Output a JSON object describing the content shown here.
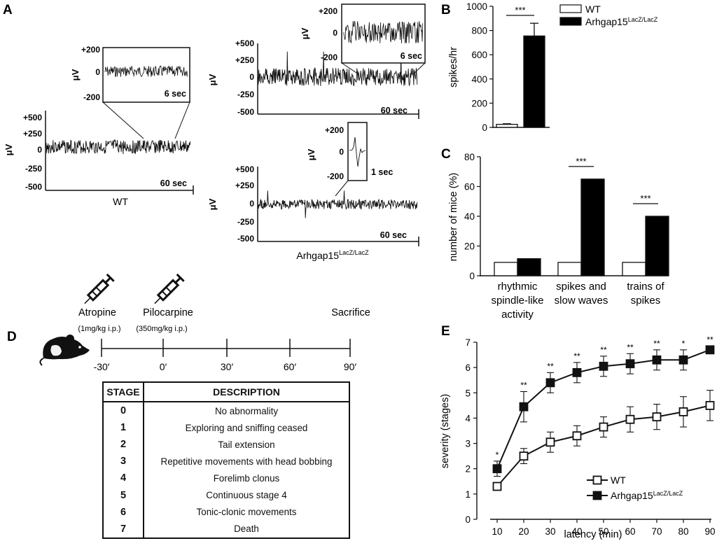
{
  "figure": {
    "panel_labels": [
      "A",
      "B",
      "C",
      "D",
      "E"
    ],
    "scale_unit": "μV",
    "bottom_trace_ticks": [
      "+500",
      "+250",
      "0",
      "-250",
      "-500"
    ],
    "inset_ticks": [
      "+200",
      "0",
      "-200"
    ]
  },
  "panel_a": {
    "wt": {
      "group_label": "WT",
      "time_label": "60 sec",
      "inset_time": "6 sec"
    },
    "ko_top": {
      "time_label": "60 sec",
      "inset_time": "6 sec"
    },
    "ko_bottom": {
      "time_label": "60 sec",
      "inset_time": "1 sec"
    },
    "ko_group_label": "Arhgap15",
    "ko_group_sup": "LacZ/LacZ"
  },
  "panel_d": {
    "timeline": {
      "ticks": [
        "-30′",
        "0′",
        "30′",
        "60′",
        "90′"
      ],
      "events": [
        {
          "name": "Atropine",
          "dose": "(1mg/kg i.p.)"
        },
        {
          "name": "Pilocarpine",
          "dose": "(350mg/kg i.p.)"
        },
        {
          "name": "Sacrifice",
          "dose": ""
        }
      ]
    },
    "table": {
      "headers": [
        "STAGE",
        "DESCRIPTION"
      ],
      "rows": [
        {
          "stage": "0",
          "description": "No abnormality"
        },
        {
          "stage": "1",
          "description": "Exploring and sniffing ceased"
        },
        {
          "stage": "2",
          "description": "Tail extension"
        },
        {
          "stage": "3",
          "description": "Repetitive movements with head bobbing"
        },
        {
          "stage": "4",
          "description": "Forelimb clonus"
        },
        {
          "stage": "5",
          "description": "Continuous stage 4"
        },
        {
          "stage": "6",
          "description": "Tonic-clonic movements"
        },
        {
          "stage": "7",
          "description": "Death"
        }
      ]
    }
  },
  "colors": {
    "wt": "#ffffff",
    "ko": "#000000",
    "stroke": "#111111"
  },
  "chart_data": [
    {
      "id": "B",
      "type": "bar",
      "categories": [
        "WT",
        "Arhgap15 LacZ/LacZ"
      ],
      "values": [
        25,
        755
      ],
      "errors": [
        5,
        105
      ],
      "ylabel": "spikes/hr",
      "ylim": [
        0,
        1000
      ],
      "yticks": [
        0,
        200,
        400,
        600,
        800,
        1000
      ],
      "significance": "***",
      "legend": [
        {
          "label": "WT",
          "sup": "",
          "color": "#ffffff"
        },
        {
          "label": "Arhgap15",
          "sup": "LacZ/LacZ",
          "color": "#000000"
        }
      ],
      "legend_position": "top-right"
    },
    {
      "id": "C",
      "type": "bar",
      "categories": [
        [
          "rhythmic",
          "spindle-like",
          "activity"
        ],
        [
          "spikes and",
          "slow waves"
        ],
        [
          "trains of",
          "spikes"
        ]
      ],
      "series": [
        {
          "name": "WT",
          "color": "#ffffff",
          "values": [
            9,
            9,
            9
          ]
        },
        {
          "name": "Arhgap15 LacZ/LacZ",
          "color": "#000000",
          "values": [
            11.5,
            65,
            40
          ]
        }
      ],
      "ylabel": "number of mice (%)",
      "ylim": [
        0,
        80
      ],
      "yticks": [
        0,
        20,
        40,
        60,
        80
      ],
      "significance": [
        "",
        "***",
        "***"
      ]
    },
    {
      "id": "E",
      "type": "line",
      "x": [
        10,
        20,
        30,
        40,
        50,
        60,
        70,
        80,
        90
      ],
      "series": [
        {
          "name": "WT",
          "sup": "",
          "marker": "open-square",
          "values": [
            1.3,
            2.5,
            3.05,
            3.3,
            3.65,
            3.95,
            4.05,
            4.25,
            4.5
          ],
          "errors": [
            0.1,
            0.3,
            0.4,
            0.4,
            0.4,
            0.5,
            0.5,
            0.6,
            0.6
          ]
        },
        {
          "name": "Arhgap15",
          "sup": "LacZ/LacZ",
          "marker": "filled-square",
          "values": [
            2.0,
            4.45,
            5.4,
            5.8,
            6.05,
            6.15,
            6.3,
            6.3,
            6.7
          ],
          "errors": [
            0.3,
            0.6,
            0.4,
            0.4,
            0.4,
            0.4,
            0.4,
            0.4,
            0.15
          ]
        }
      ],
      "significance": [
        "*",
        "**",
        "**",
        "**",
        "**",
        "**",
        "**",
        "*",
        "**"
      ],
      "xlabel": "latency (min)",
      "ylabel": "severity (stages)",
      "xlim": [
        10,
        90
      ],
      "ylim": [
        0,
        7
      ],
      "xticks": [
        10,
        20,
        30,
        40,
        50,
        60,
        70,
        80,
        90
      ],
      "yticks": [
        0,
        1,
        2,
        3,
        4,
        5,
        6,
        7
      ],
      "legend_position": "bottom-right"
    }
  ]
}
